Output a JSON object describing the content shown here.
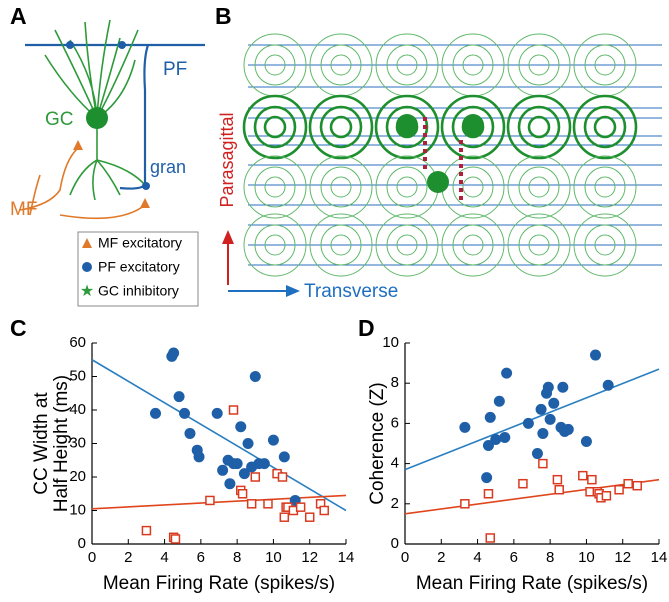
{
  "panel_labels": [
    "A",
    "B",
    "C",
    "D"
  ],
  "diagram_a": {
    "pf": "PF",
    "gc": "GC",
    "gran": "gran",
    "mf": "MF",
    "legend": [
      "MF excitatory",
      "PF excitatory",
      "GC inhibitory"
    ]
  },
  "diagram_b": {
    "y_label": "Parasagittal",
    "x_label": "Transverse"
  },
  "chart_data": [
    {
      "type": "scatter",
      "y_label": [
        "CC Width at",
        "Half Height (ms)"
      ],
      "x_label": "Mean Firing Rate (spikes/s)",
      "xlim": [
        0,
        14
      ],
      "xticks": [
        0,
        2,
        4,
        6,
        8,
        10,
        12,
        14
      ],
      "ylim": [
        0,
        60
      ],
      "yticks": [
        0,
        10,
        20,
        30,
        40,
        50,
        60
      ],
      "series": [
        {
          "color": "#1f5fa8",
          "marker": "circle",
          "x": [
            3.5,
            4.4,
            4.5,
            4.8,
            5.1,
            5.4,
            5.8,
            5.9,
            6.9,
            7.2,
            7.5,
            7.6,
            7.8,
            8.0,
            8.2,
            8.4,
            8.6,
            8.8,
            9.0,
            9.2,
            9.5,
            10.0,
            10.6,
            11.2
          ],
          "values": [
            39,
            56,
            57,
            44,
            39,
            33,
            28,
            26,
            39,
            22,
            25,
            18,
            24,
            24,
            35,
            21,
            30,
            23,
            50,
            24,
            24,
            31,
            26,
            13
          ]
        },
        {
          "color": "#d93a1f",
          "marker": "square",
          "x": [
            3.0,
            4.5,
            4.6,
            6.5,
            7.8,
            8.2,
            8.3,
            8.8,
            9.0,
            9.7,
            10.2,
            10.5,
            10.6,
            10.7,
            10.8,
            11.1,
            11.5,
            12.0,
            12.6,
            12.8
          ],
          "values": [
            4,
            2,
            1.5,
            13,
            40,
            16,
            15,
            12,
            20,
            12,
            21,
            20,
            8,
            11,
            11,
            10,
            11,
            8,
            12,
            10
          ]
        }
      ],
      "fit_lines": [
        {
          "color": "#2a7fc1",
          "x": [
            0,
            14
          ],
          "values": [
            55,
            10
          ]
        },
        {
          "color": "#e0461c",
          "x": [
            0,
            14
          ],
          "values": [
            10.5,
            14.5
          ]
        }
      ]
    },
    {
      "type": "scatter",
      "y_label": [
        "Coherence (Z)"
      ],
      "x_label": "Mean Firing Rate (spikes/s)",
      "xlim": [
        0,
        14
      ],
      "xticks": [
        0,
        2,
        4,
        6,
        8,
        10,
        12,
        14
      ],
      "ylim": [
        0,
        10
      ],
      "yticks": [
        0,
        2,
        4,
        6,
        8,
        10
      ],
      "series": [
        {
          "color": "#1f5fa8",
          "marker": "circle",
          "x": [
            3.3,
            4.5,
            4.6,
            4.7,
            5.0,
            5.2,
            5.5,
            5.6,
            6.8,
            7.3,
            7.5,
            7.6,
            7.8,
            7.9,
            8.0,
            8.2,
            8.6,
            8.7,
            8.8,
            9.0,
            10.0,
            10.5,
            11.2
          ],
          "values": [
            5.8,
            3.3,
            4.9,
            6.3,
            5.2,
            7.1,
            5.3,
            8.5,
            6.0,
            4.5,
            6.7,
            5.5,
            7.5,
            7.8,
            6.2,
            7.0,
            5.8,
            7.8,
            5.6,
            5.7,
            5.1,
            9.4,
            7.9
          ]
        },
        {
          "color": "#d93a1f",
          "marker": "square",
          "x": [
            3.3,
            4.6,
            4.7,
            6.5,
            7.6,
            8.4,
            8.5,
            9.8,
            10.2,
            10.3,
            10.6,
            10.7,
            10.8,
            11.1,
            11.8,
            12.3,
            12.8
          ],
          "values": [
            2.0,
            2.5,
            0.3,
            3.0,
            4.0,
            3.2,
            2.7,
            3.4,
            2.6,
            3.2,
            2.6,
            2.5,
            2.3,
            2.4,
            2.7,
            3.0,
            2.9
          ]
        }
      ],
      "fit_lines": [
        {
          "color": "#2a7fc1",
          "x": [
            0,
            14
          ],
          "values": [
            3.7,
            8.7
          ]
        },
        {
          "color": "#e0461c",
          "x": [
            0,
            14
          ],
          "values": [
            1.5,
            3.2
          ]
        }
      ]
    }
  ]
}
